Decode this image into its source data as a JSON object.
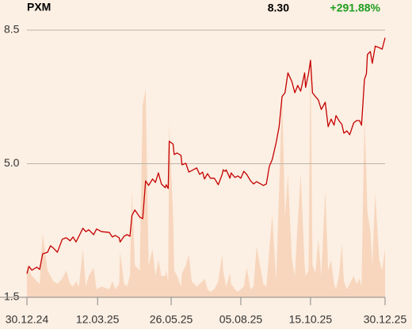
{
  "chart_data": {
    "type": "line",
    "title": "PXM",
    "last_value": "8.30",
    "change": "+291.88%",
    "change_color": "#1e9e1e",
    "x": [
      0,
      2,
      5,
      10,
      13,
      16,
      21,
      24,
      27,
      31,
      36,
      40,
      44,
      47,
      50,
      53,
      57,
      60,
      63,
      68,
      71,
      76,
      84,
      87,
      90,
      94,
      95,
      99,
      102,
      105,
      107,
      110,
      115,
      118,
      121,
      124,
      128,
      131,
      134,
      137,
      141,
      142,
      144,
      145,
      149,
      150,
      153,
      157,
      158,
      162,
      165,
      168,
      173,
      176,
      179,
      181,
      184,
      187,
      191,
      195,
      199,
      200,
      202,
      203,
      207,
      208,
      212,
      215,
      218,
      221,
      224,
      228,
      231,
      234,
      241,
      244,
      247,
      250,
      254,
      257,
      260,
      263,
      266,
      270,
      273,
      276,
      279,
      283,
      284,
      287,
      289,
      291,
      294,
      297,
      300,
      304,
      307,
      310,
      313,
      315,
      318,
      321,
      323,
      326,
      329,
      333,
      336,
      339,
      341,
      344,
      346,
      347,
      350,
      352,
      355,
      359,
      362,
      365
    ],
    "series": [
      {
        "color": "#c40000",
        "values": [
          2.12,
          2.31,
          2.21,
          2.29,
          2.23,
          2.64,
          2.68,
          2.85,
          2.79,
          2.68,
          3.02,
          3.06,
          2.98,
          3.08,
          2.95,
          3.1,
          3.31,
          3.22,
          3.27,
          3.14,
          3.29,
          3.22,
          3.2,
          3.08,
          3.12,
          3.06,
          2.95,
          3.1,
          3.14,
          3.1,
          3.64,
          3.79,
          3.6,
          3.56,
          4.55,
          4.43,
          4.6,
          4.51,
          4.76,
          4.47,
          4.37,
          4.45,
          4.35,
          5.59,
          5.51,
          5.24,
          5.28,
          5.22,
          4.97,
          5.01,
          4.78,
          4.82,
          4.89,
          4.72,
          4.78,
          4.6,
          4.74,
          4.62,
          4.62,
          4.45,
          4.72,
          4.84,
          4.8,
          4.84,
          4.62,
          4.76,
          4.64,
          4.68,
          4.62,
          4.8,
          4.72,
          4.55,
          4.47,
          4.53,
          4.43,
          4.47,
          4.93,
          5.11,
          5.55,
          5.97,
          6.76,
          6.86,
          7.38,
          7.15,
          6.86,
          7.05,
          6.9,
          7.38,
          7.0,
          7.36,
          7.71,
          6.86,
          6.76,
          6.67,
          6.42,
          6.61,
          5.97,
          6.17,
          6.01,
          6.26,
          6.13,
          6.03,
          5.8,
          5.86,
          5.76,
          6.07,
          6.13,
          6.13,
          6.01,
          7.21,
          7.36,
          7.86,
          7.94,
          7.63,
          8.08,
          8.04,
          8.0,
          8.3
        ]
      },
      {
        "color": "#f7d6bd",
        "axis": "y2",
        "values": [
          12,
          10,
          8,
          6,
          5,
          24,
          10,
          8,
          6,
          5,
          7,
          10,
          5,
          4,
          6,
          4,
          18,
          4,
          8,
          11,
          3,
          4,
          3,
          6,
          3,
          5,
          17,
          5,
          4,
          8,
          40,
          12,
          10,
          72,
          78,
          12,
          18,
          8,
          14,
          8,
          8,
          10,
          6,
          65,
          30,
          10,
          8,
          4,
          9,
          12,
          16,
          6,
          4,
          5,
          6,
          7,
          3,
          2,
          3,
          6,
          16,
          10,
          6,
          4,
          9,
          5,
          3,
          2,
          3,
          4,
          11,
          3,
          4,
          19,
          5,
          4,
          18,
          31,
          6,
          40,
          76,
          30,
          46,
          14,
          8,
          28,
          46,
          12,
          8,
          10,
          92,
          12,
          9,
          22,
          8,
          40,
          10,
          14,
          5,
          3,
          8,
          20,
          6,
          3,
          5,
          8,
          5,
          7,
          4,
          67,
          45,
          32,
          25,
          12,
          39,
          14,
          10,
          18
        ]
      }
    ],
    "xlim": [
      0,
      365
    ],
    "xticks": [
      {
        "value": 0,
        "label": "30.12.24"
      },
      {
        "value": 72,
        "label": "12.03.25"
      },
      {
        "value": 147,
        "label": "26.05.25"
      },
      {
        "value": 218,
        "label": "05.08.25"
      },
      {
        "value": 289,
        "label": "15.10.25"
      },
      {
        "value": 365,
        "label": "30.12.25"
      }
    ],
    "ylim": [
      1.5,
      8.5
    ],
    "yticks": [
      1.5,
      {
        "value": 5,
        "label": "5.0"
      },
      8.5
    ],
    "y2lim": [
      0,
      100
    ],
    "grid": true
  }
}
